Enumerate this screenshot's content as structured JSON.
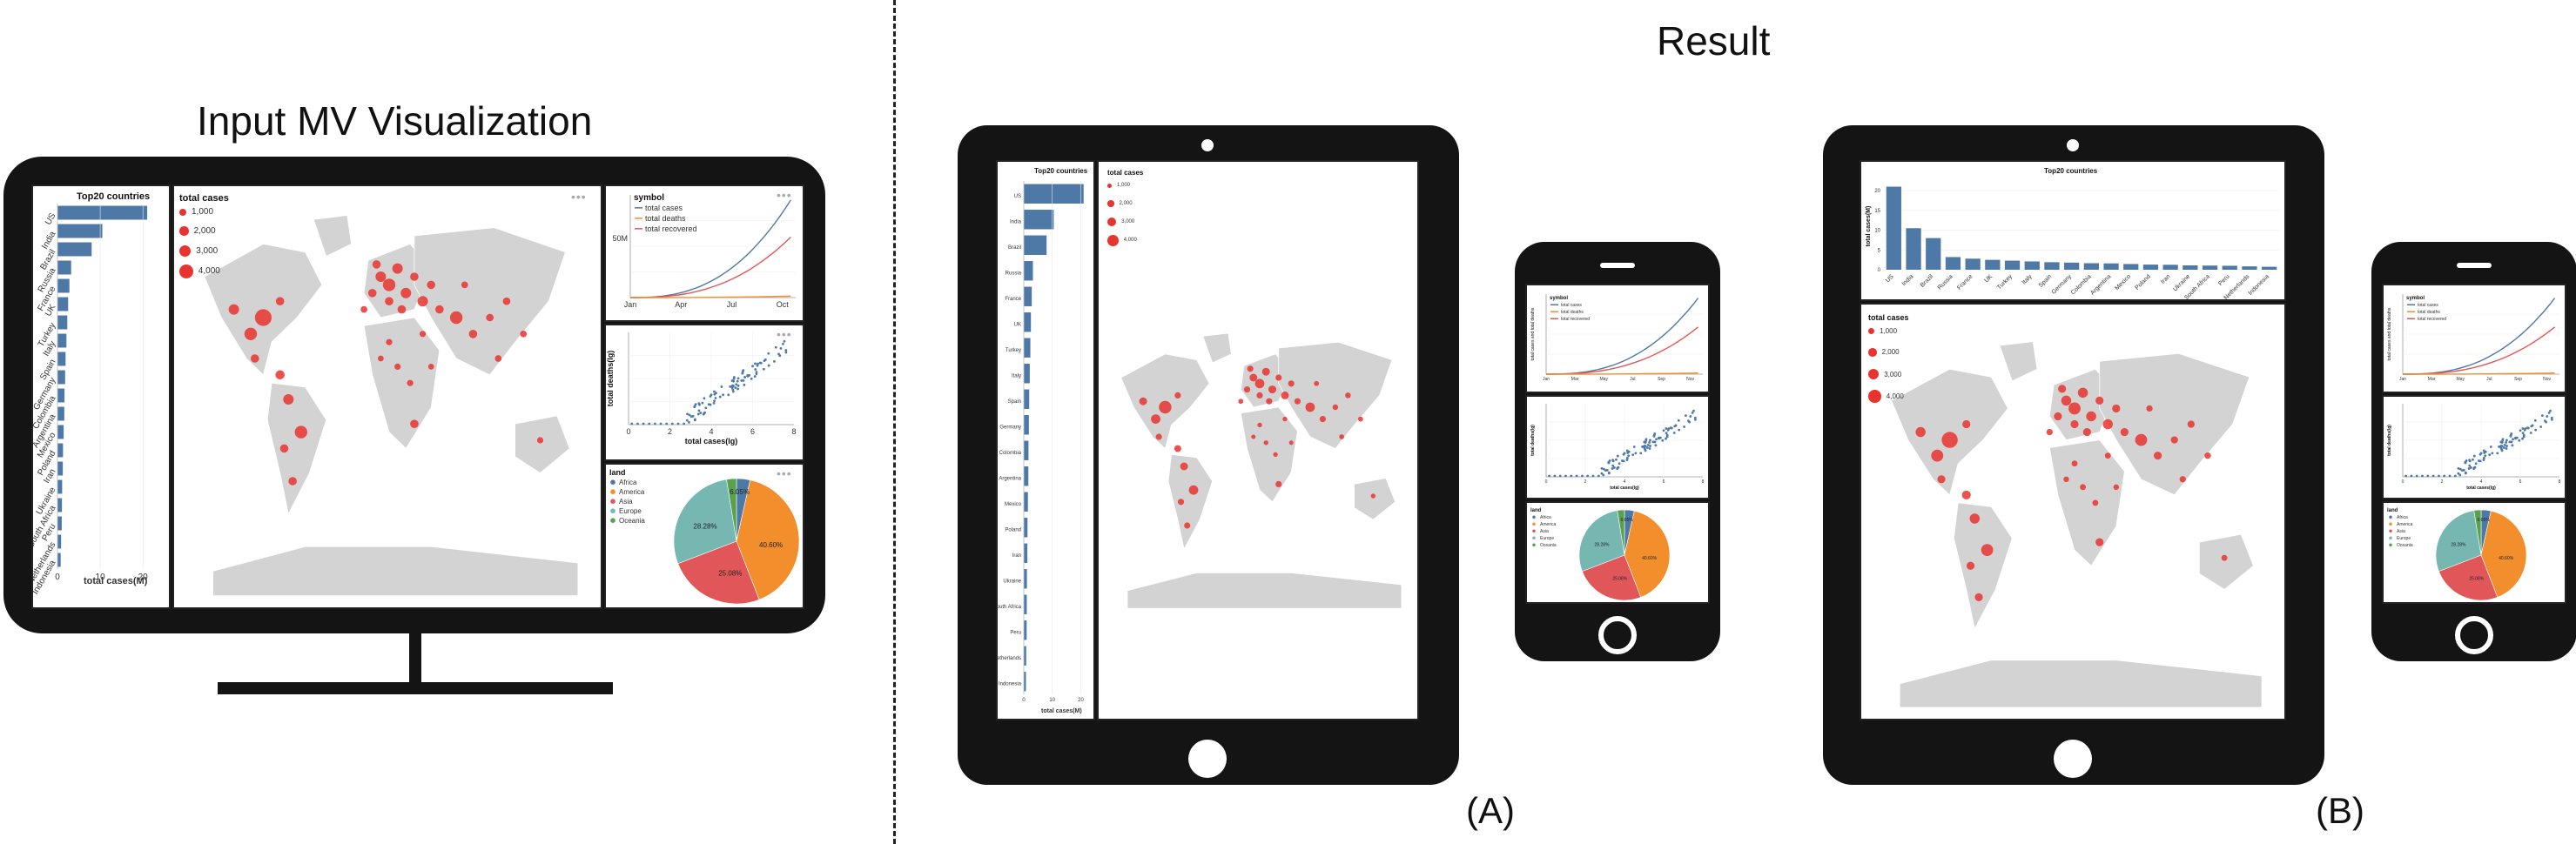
{
  "headings": {
    "input": "Input MV Visualization",
    "result": "Result",
    "label_a": "(A)",
    "label_b": "(B)"
  },
  "views": {
    "bar_title": "Top20 countries",
    "bar_axis_label": "total cases(M)",
    "bar_axis_label_vertical": "total cases(M)",
    "map_title": "total cases",
    "map_legend": [
      "1,000",
      "2,000",
      "3,000",
      "4,000"
    ],
    "line_legend_title": "symbol",
    "line_series": [
      "total cases",
      "total deaths",
      "total recovered"
    ],
    "line_y_tick": "50M",
    "line_months_short": [
      "Jan",
      "Apr",
      "Jul",
      "Oct"
    ],
    "line_months_long": [
      "Jan",
      "Mar",
      "May",
      "Jul",
      "Sep",
      "Nov"
    ],
    "line_y_label": "total cases and total deaths",
    "scatter_y_label": "total deaths(lg)",
    "scatter_x_label": "total cases(lg)",
    "pie_legend_title": "land",
    "pie_legend": [
      "Africa",
      "America",
      "Asia",
      "Europe",
      "Oceania"
    ],
    "pie_labels": [
      "40.60%",
      "25.08%",
      "28.28%",
      "6.05%"
    ],
    "bar_x_ticks": [
      "0",
      "10",
      "20"
    ]
  },
  "colors": {
    "bar": "#4e79a7",
    "bubble": "#e8342f",
    "land": "#d3d3d3",
    "cases_line": "#4e79a7",
    "deaths_line": "#e15759",
    "recovered_line": "#f28e2b",
    "pie": [
      "#4e79a7",
      "#f28e2b",
      "#e15759",
      "#76b7b2",
      "#59a14f"
    ]
  },
  "chart_data": {
    "type": "bar",
    "title": "Top20 countries",
    "categories": [
      "US",
      "India",
      "Brazil",
      "Russia",
      "France",
      "UK",
      "Turkey",
      "Italy",
      "Spain",
      "Germany",
      "Colombia",
      "Argentina",
      "Mexico",
      "Poland",
      "Iran",
      "Ukraine",
      "South Africa",
      "Peru",
      "Netherlands",
      "Indonesia"
    ],
    "values": [
      21,
      10.5,
      8,
      3.2,
      2.8,
      2.5,
      2.3,
      2.1,
      1.9,
      1.8,
      1.65,
      1.6,
      1.45,
      1.3,
      1.25,
      1.1,
      1.05,
      1.0,
      0.85,
      0.75
    ],
    "ylabel": "total cases(M)",
    "ylim": [
      0,
      22
    ],
    "pie": {
      "categories": [
        "Africa",
        "America",
        "Asia",
        "Europe",
        "Oceania"
      ],
      "values": [
        3.5,
        40.6,
        25.08,
        28.28,
        2.55
      ],
      "labels": [
        "40.60%",
        "25.08%",
        "28.28%",
        "6.05%"
      ]
    }
  }
}
